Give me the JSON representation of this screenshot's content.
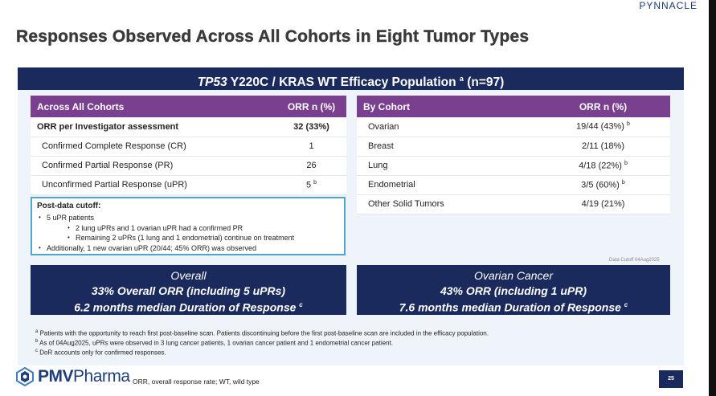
{
  "brand_top": "PYNNACLE",
  "title": "Responses Observed Across All Cohorts in Eight Tumor Types",
  "banner": {
    "gene": "TP53",
    "rest": " Y220C / KRAS WT Efficacy Population ",
    "sup": "a",
    "n": " (n=97)"
  },
  "left_table": {
    "headers": [
      "Across All Cohorts",
      "ORR n (%)"
    ],
    "rows": [
      {
        "label": "ORR per Investigator assessment",
        "value": "32 (33%)",
        "sup": ""
      },
      {
        "label": "Confirmed Complete Response (CR)",
        "value": "1",
        "sup": ""
      },
      {
        "label": "Confirmed Partial Response (PR)",
        "value": "26",
        "sup": ""
      },
      {
        "label": "Unconfirmed Partial Response (uPR)",
        "value": "5",
        "sup": "b"
      }
    ]
  },
  "cutoff": {
    "heading": "Post-data cutoff:",
    "bullet_main": "•",
    "bullet_sub": "•",
    "lines": [
      "5 uPR patients",
      "2 lung uPRs and 1 ovarian uPR had a confirmed PR",
      "Remaining 2 uPRs (1 lung and 1 endometrial) continue on treatment",
      "Additionally, 1 new ovarian uPR (20/44; 45% ORR) was observed"
    ]
  },
  "right_table": {
    "headers": [
      "By Cohort",
      "ORR n (%)"
    ],
    "rows": [
      {
        "label": "Ovarian",
        "value": "19/44 (43%)",
        "sup": "b"
      },
      {
        "label": "Breast",
        "value": "2/11 (18%)",
        "sup": ""
      },
      {
        "label": "Lung",
        "value": "4/18 (22%)",
        "sup": "b"
      },
      {
        "label": "Endometrial",
        "value": "3/5 (60%)",
        "sup": "b"
      },
      {
        "label": "Other Solid Tumors",
        "value": "4/19 (21%)",
        "sup": ""
      }
    ]
  },
  "data_cutoff_note": "Data Cutoff 04Aug2025",
  "summary_left": {
    "heading": "Overall",
    "line1": "33% Overall ORR (including 5 uPRs)",
    "line2": "6.2 months median Duration of Response ",
    "sup": "c"
  },
  "summary_right": {
    "heading": "Ovarian Cancer",
    "line1": "43% ORR (including 1 uPR)",
    "line2": "7.6 months median Duration of Response ",
    "sup": "c"
  },
  "footnotes": [
    {
      "mark": "a",
      "text": " Patients with the opportunity to reach first post-baseline scan. Patients discontinuing before the first post-baseline scan are included in the efficacy population."
    },
    {
      "mark": "b",
      "text": " As of 04Aug2025, uPRs were observed in 3 lung cancer patients, 1 ovarian cancer patient and 1 endometrial cancer patient."
    },
    {
      "mark": "c",
      "text": " DoR accounts only for confirmed responses."
    }
  ],
  "logo": {
    "bold": "PMV",
    "rest": "Pharma"
  },
  "abbreviations": "ORR, overall response rate; WT, wild type",
  "page_number": "25",
  "colors": {
    "navy": "#1a2a5c",
    "purple": "#7b3f8f",
    "panel": "#eef4f9",
    "cyan": "#4ea6cf"
  }
}
